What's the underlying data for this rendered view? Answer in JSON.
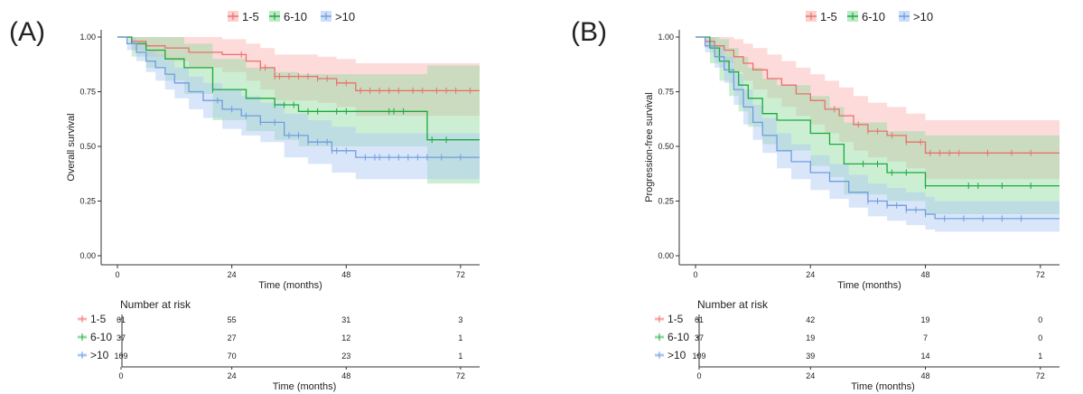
{
  "colors": {
    "g1": "#e8726b",
    "g2": "#1aaa3a",
    "g3": "#6f9de0",
    "g1_band": "#fbb0ad",
    "g2_band": "#8fdc9f",
    "g3_band": "#aac8f4",
    "axis": "#333333",
    "text": "#222222"
  },
  "chart_data": [
    {
      "type": "line",
      "panel_label": "(A)",
      "title": "",
      "xlabel": "Time (months)",
      "ylabel": "Overall survival",
      "xlim": [
        0,
        76
      ],
      "ylim": [
        0,
        1
      ],
      "x_ticks": [
        "0",
        "24",
        "48",
        "72"
      ],
      "y_ticks": [
        "0.00",
        "0.25",
        "0.50",
        "0.75",
        "1.00"
      ],
      "legend": [
        "1-5",
        "6-10",
        ">10"
      ],
      "series": [
        {
          "name": "1-5",
          "color_key": "g1",
          "x": [
            0,
            3,
            6,
            10,
            15,
            22,
            27,
            30,
            33,
            42,
            46,
            50,
            65,
            76
          ],
          "y": [
            1.0,
            0.98,
            0.96,
            0.95,
            0.93,
            0.92,
            0.89,
            0.86,
            0.82,
            0.81,
            0.79,
            0.755,
            0.755,
            0.755
          ],
          "lower": [
            1.0,
            0.94,
            0.91,
            0.89,
            0.86,
            0.84,
            0.8,
            0.76,
            0.71,
            0.7,
            0.68,
            0.64,
            0.64,
            0.64
          ],
          "upper": [
            1.0,
            1.0,
            1.0,
            1.0,
            1.0,
            0.99,
            0.97,
            0.95,
            0.92,
            0.91,
            0.9,
            0.88,
            0.88,
            0.88
          ],
          "censor_x": [
            26,
            30,
            31,
            33,
            34,
            36,
            38,
            40,
            42,
            44,
            46,
            48,
            51,
            53,
            55,
            57,
            59,
            62,
            64,
            67,
            69,
            71,
            74
          ]
        },
        {
          "name": "6-10",
          "color_key": "g2",
          "x": [
            0,
            3,
            6,
            10,
            14,
            20,
            27,
            33,
            38,
            45,
            50,
            63,
            65,
            78
          ],
          "y": [
            1.0,
            0.97,
            0.94,
            0.9,
            0.86,
            0.76,
            0.72,
            0.69,
            0.66,
            0.66,
            0.66,
            0.66,
            0.53,
            0.53
          ],
          "lower": [
            1.0,
            0.91,
            0.86,
            0.8,
            0.74,
            0.62,
            0.57,
            0.53,
            0.5,
            0.5,
            0.5,
            0.5,
            0.33,
            0.33
          ],
          "upper": [
            1.0,
            1.0,
            1.0,
            1.0,
            0.97,
            0.9,
            0.86,
            0.84,
            0.83,
            0.83,
            0.83,
            0.83,
            0.87,
            0.87
          ],
          "censor_x": [
            20,
            33,
            35,
            37,
            40,
            42,
            46,
            48,
            57,
            58,
            60,
            66,
            69
          ]
        },
        {
          "name": ">10",
          "color_key": "g3",
          "x": [
            0,
            2,
            4,
            6,
            8,
            10,
            12,
            15,
            18,
            22,
            26,
            30,
            35,
            40,
            45,
            50,
            76
          ],
          "y": [
            1.0,
            0.97,
            0.93,
            0.89,
            0.86,
            0.83,
            0.79,
            0.75,
            0.71,
            0.67,
            0.64,
            0.61,
            0.55,
            0.52,
            0.48,
            0.45,
            0.45
          ],
          "lower": [
            1.0,
            0.94,
            0.89,
            0.84,
            0.8,
            0.76,
            0.72,
            0.67,
            0.63,
            0.58,
            0.55,
            0.52,
            0.45,
            0.42,
            0.38,
            0.35,
            0.35
          ],
          "upper": [
            1.0,
            1.0,
            0.97,
            0.94,
            0.92,
            0.89,
            0.86,
            0.82,
            0.79,
            0.76,
            0.73,
            0.7,
            0.65,
            0.62,
            0.59,
            0.56,
            0.56
          ],
          "censor_x": [
            21,
            24,
            27,
            30,
            33,
            36,
            38,
            40,
            42,
            44,
            45,
            46,
            48,
            52,
            54,
            55,
            57,
            59,
            61,
            63,
            65,
            68,
            72
          ]
        }
      ],
      "risk_table": {
        "title": "Number at risk",
        "xlabel": "Time (months)",
        "x_ticks": [
          "0",
          "24",
          "48",
          "72"
        ],
        "rows": [
          {
            "name": "1-5",
            "color_key": "g1",
            "values": [
              "61",
              "55",
              "31",
              "3"
            ]
          },
          {
            "name": "6-10",
            "color_key": "g2",
            "values": [
              "37",
              "27",
              "12",
              "1"
            ]
          },
          {
            "name": ">10",
            "color_key": "g3",
            "values": [
              "109",
              "70",
              "23",
              "1"
            ]
          }
        ]
      }
    },
    {
      "type": "line",
      "panel_label": "(B)",
      "title": "",
      "xlabel": "Time (months)",
      "ylabel": "Progression-free survival",
      "xlim": [
        0,
        76
      ],
      "ylim": [
        0,
        1
      ],
      "x_ticks": [
        "0",
        "24",
        "48",
        "72"
      ],
      "y_ticks": [
        "0.00",
        "0.25",
        "0.50",
        "0.75",
        "1.00"
      ],
      "legend": [
        "1-5",
        "6-10",
        ">10"
      ],
      "series": [
        {
          "name": "1-5",
          "color_key": "g1",
          "x": [
            0,
            2,
            4,
            6,
            8,
            10,
            12,
            15,
            18,
            21,
            24,
            27,
            30,
            33,
            36,
            40,
            44,
            48,
            71
          ],
          "y": [
            1.0,
            0.98,
            0.96,
            0.94,
            0.91,
            0.88,
            0.85,
            0.81,
            0.78,
            0.74,
            0.71,
            0.67,
            0.64,
            0.6,
            0.57,
            0.55,
            0.52,
            0.47,
            0.47
          ],
          "lower": [
            1.0,
            0.95,
            0.91,
            0.88,
            0.84,
            0.8,
            0.76,
            0.72,
            0.68,
            0.64,
            0.6,
            0.56,
            0.52,
            0.48,
            0.45,
            0.43,
            0.4,
            0.35,
            0.35
          ],
          "upper": [
            1.0,
            1.0,
            1.0,
            1.0,
            0.99,
            0.97,
            0.95,
            0.92,
            0.89,
            0.86,
            0.83,
            0.8,
            0.77,
            0.73,
            0.7,
            0.68,
            0.65,
            0.62,
            0.62
          ],
          "censor_x": [
            29,
            34,
            36,
            38,
            41,
            44,
            47,
            49,
            51,
            53,
            55,
            61,
            66,
            70
          ]
        },
        {
          "name": "6-10",
          "color_key": "g2",
          "x": [
            0,
            3,
            5,
            7,
            9,
            11,
            14,
            17,
            24,
            28,
            31,
            40,
            48,
            72
          ],
          "y": [
            1.0,
            0.95,
            0.89,
            0.84,
            0.78,
            0.72,
            0.65,
            0.62,
            0.56,
            0.51,
            0.42,
            0.38,
            0.32,
            0.32
          ],
          "lower": [
            1.0,
            0.88,
            0.8,
            0.73,
            0.66,
            0.59,
            0.51,
            0.48,
            0.41,
            0.36,
            0.28,
            0.25,
            0.19,
            0.19
          ],
          "upper": [
            1.0,
            1.0,
            0.99,
            0.95,
            0.91,
            0.86,
            0.81,
            0.78,
            0.73,
            0.68,
            0.61,
            0.57,
            0.55,
            0.55
          ],
          "censor_x": [
            35,
            38,
            41,
            44,
            48,
            57,
            59,
            64,
            70
          ]
        },
        {
          "name": ">10",
          "color_key": "g3",
          "x": [
            0,
            2,
            4,
            6,
            8,
            10,
            12,
            14,
            17,
            20,
            24,
            28,
            32,
            36,
            40,
            44,
            48,
            50,
            76
          ],
          "y": [
            1.0,
            0.96,
            0.91,
            0.85,
            0.76,
            0.68,
            0.61,
            0.55,
            0.48,
            0.43,
            0.38,
            0.34,
            0.29,
            0.25,
            0.23,
            0.21,
            0.19,
            0.17,
            0.17
          ],
          "lower": [
            1.0,
            0.93,
            0.86,
            0.79,
            0.69,
            0.6,
            0.53,
            0.47,
            0.4,
            0.35,
            0.3,
            0.26,
            0.22,
            0.18,
            0.16,
            0.14,
            0.12,
            0.11,
            0.11
          ],
          "upper": [
            1.0,
            1.0,
            0.96,
            0.91,
            0.83,
            0.76,
            0.69,
            0.63,
            0.56,
            0.51,
            0.46,
            0.42,
            0.37,
            0.33,
            0.31,
            0.29,
            0.27,
            0.25,
            0.25
          ],
          "censor_x": [
            36,
            38,
            40,
            42,
            44,
            46,
            48,
            52,
            56,
            60,
            64,
            68
          ]
        }
      ],
      "risk_table": {
        "title": "Number at risk",
        "xlabel": "Time (months)",
        "x_ticks": [
          "0",
          "24",
          "48",
          "72"
        ],
        "rows": [
          {
            "name": "1-5",
            "color_key": "g1",
            "values": [
              "61",
              "42",
              "19",
              "0"
            ]
          },
          {
            "name": "6-10",
            "color_key": "g2",
            "values": [
              "37",
              "19",
              "7",
              "0"
            ]
          },
          {
            "name": ">10",
            "color_key": "g3",
            "values": [
              "109",
              "39",
              "14",
              "1"
            ]
          }
        ]
      }
    }
  ]
}
